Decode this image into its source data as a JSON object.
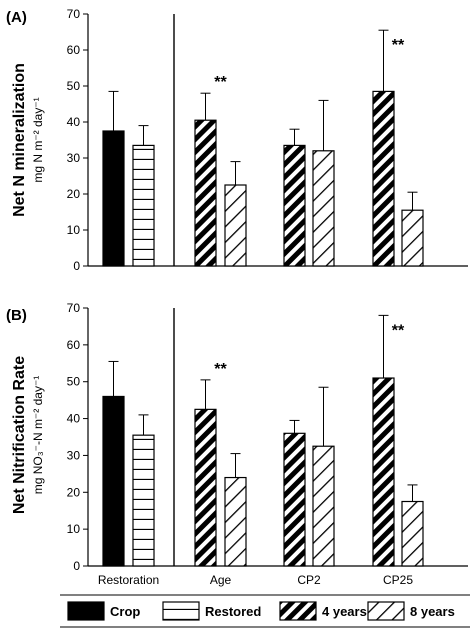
{
  "chart_data": [
    {
      "type": "bar",
      "panel_label": "(A)",
      "ylabel": "Net N mineralization",
      "ylabel_unit": "mg N m⁻² day⁻¹",
      "ylim": [
        0,
        70
      ],
      "yticks": [
        0,
        10,
        20,
        30,
        40,
        50,
        60,
        70
      ],
      "grid": false,
      "groups": [
        {
          "name": "Restoration",
          "bars": [
            {
              "series": "Crop",
              "value": 37.5,
              "error": 11
            },
            {
              "series": "Restored",
              "value": 33.5,
              "error": 5.5
            }
          ]
        },
        {
          "name": "Age",
          "significance": "**",
          "bars": [
            {
              "series": "4 years",
              "value": 40.5,
              "error": 7.5
            },
            {
              "series": "8 years",
              "value": 22.5,
              "error": 6.5
            }
          ]
        },
        {
          "name": "CP2",
          "bars": [
            {
              "series": "4 years",
              "value": 33.5,
              "error": 4.5
            },
            {
              "series": "8 years",
              "value": 32,
              "error": 14
            }
          ]
        },
        {
          "name": "CP25",
          "significance": "**",
          "bars": [
            {
              "series": "4 years",
              "value": 48.5,
              "error": 17
            },
            {
              "series": "8 years",
              "value": 15.5,
              "error": 5
            }
          ]
        }
      ]
    },
    {
      "type": "bar",
      "panel_label": "(B)",
      "ylabel": "Net Nitrification Rate",
      "ylabel_unit": "mg NO₃⁻-N m⁻² day⁻¹",
      "ylim": [
        0,
        70
      ],
      "yticks": [
        0,
        10,
        20,
        30,
        40,
        50,
        60,
        70
      ],
      "grid": false,
      "groups": [
        {
          "name": "Restoration",
          "bars": [
            {
              "series": "Crop",
              "value": 46,
              "error": 9.5
            },
            {
              "series": "Restored",
              "value": 35.5,
              "error": 5.5
            }
          ]
        },
        {
          "name": "Age",
          "significance": "**",
          "bars": [
            {
              "series": "4 years",
              "value": 42.5,
              "error": 8
            },
            {
              "series": "8 years",
              "value": 24,
              "error": 6.5
            }
          ]
        },
        {
          "name": "CP2",
          "bars": [
            {
              "series": "4 years",
              "value": 36,
              "error": 3.5
            },
            {
              "series": "8 years",
              "value": 32.5,
              "error": 16
            }
          ]
        },
        {
          "name": "CP25",
          "significance": "**",
          "bars": [
            {
              "series": "4 years",
              "value": 51,
              "error": 17
            },
            {
              "series": "8 years",
              "value": 17.5,
              "error": 4.5
            }
          ]
        }
      ],
      "categories": [
        "Restoration",
        "Age",
        "CP2",
        "CP25"
      ]
    }
  ],
  "legend": {
    "placement": "bottom",
    "entries": [
      {
        "label": "Crop",
        "pattern": "solid-black"
      },
      {
        "label": "Restored",
        "pattern": "horizontal-lines"
      },
      {
        "label": "4 years",
        "pattern": "dense-diagonal"
      },
      {
        "label": "8 years",
        "pattern": "sparse-diagonal"
      }
    ]
  }
}
